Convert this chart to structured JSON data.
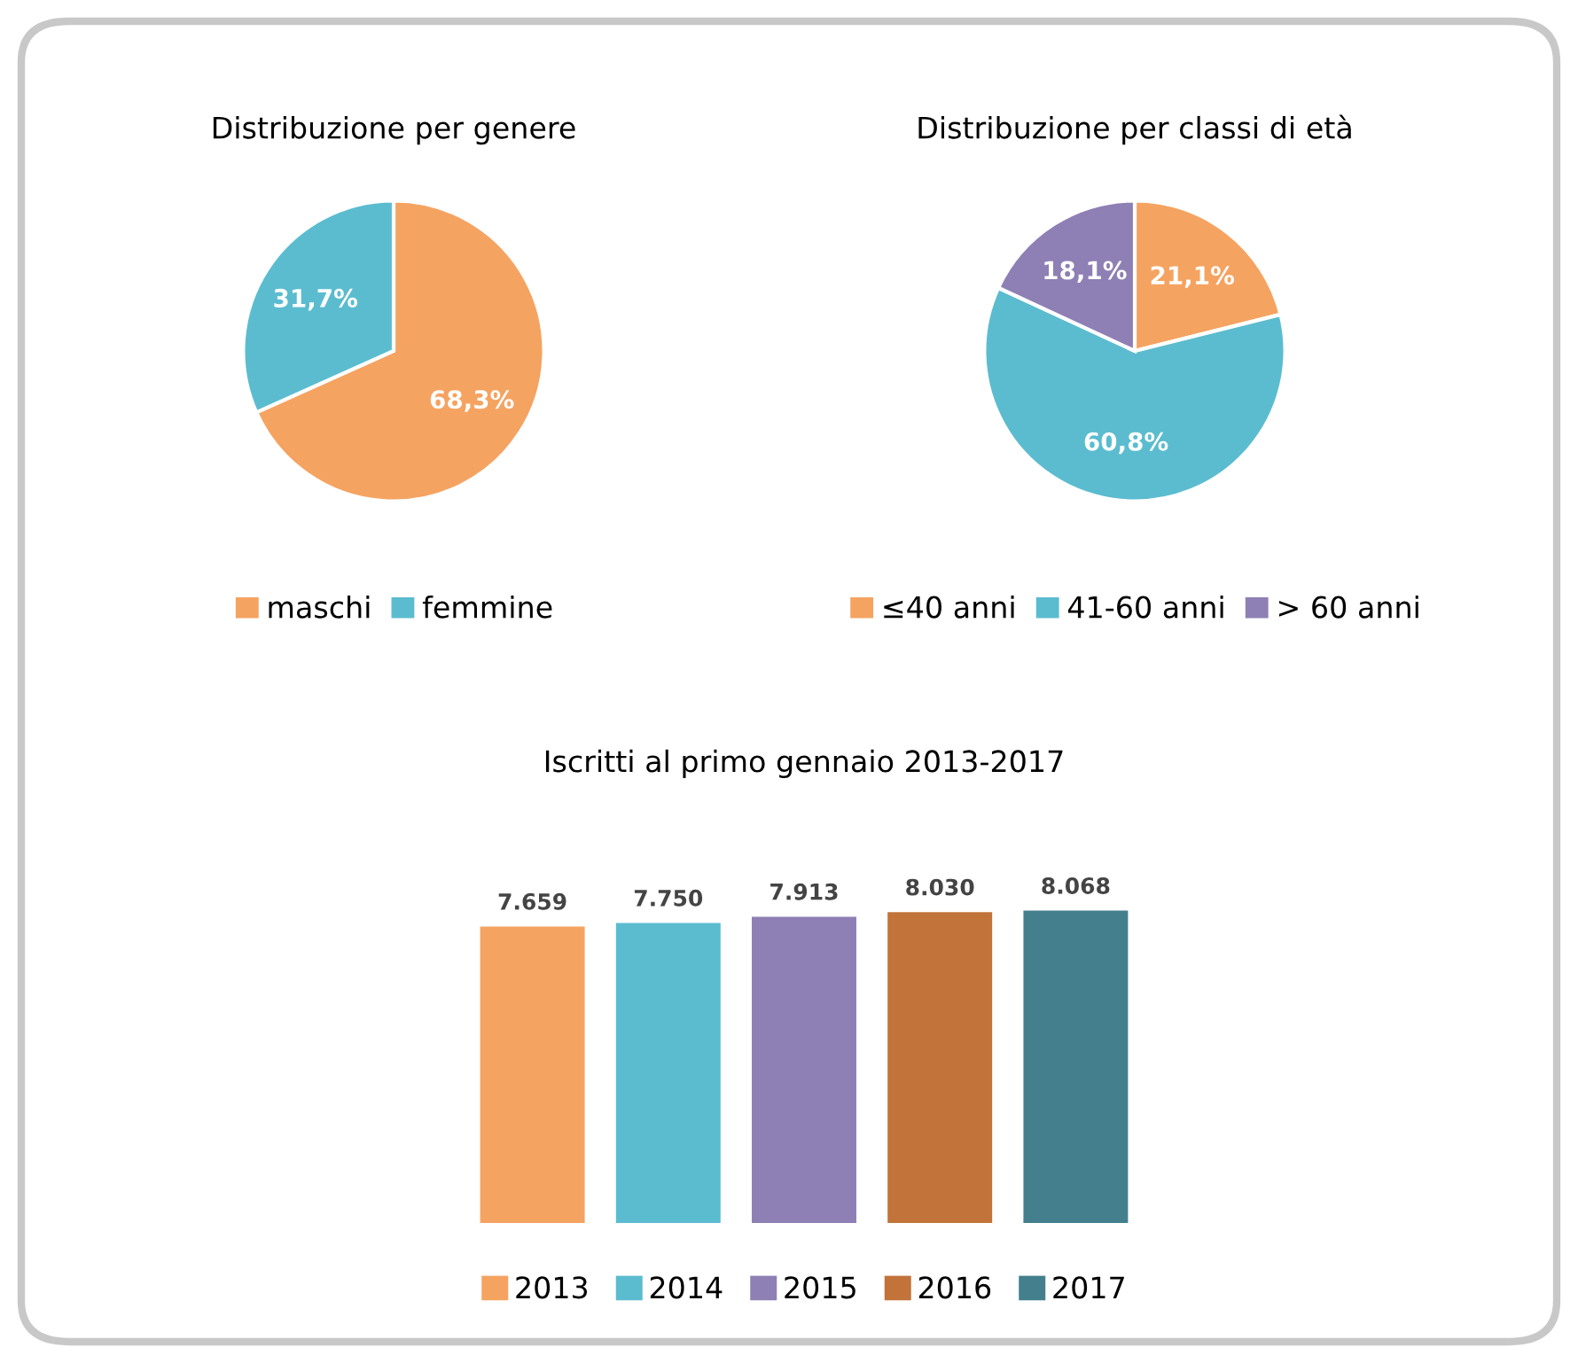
{
  "chart_data": [
    {
      "type": "pie",
      "title": "Distribuzione per genere",
      "categories": [
        "maschi",
        "femmine"
      ],
      "values": [
        68.3,
        31.7
      ],
      "colors": [
        "#f5a361",
        "#5bbccf"
      ],
      "value_labels": [
        "68,3%",
        "31,7%"
      ],
      "legend": "bottom"
    },
    {
      "type": "pie",
      "title": "Distribuzione per classi di età",
      "categories": [
        "≤40 anni",
        "41-60 anni",
        "> 60 anni"
      ],
      "values": [
        21.1,
        60.8,
        18.1
      ],
      "colors": [
        "#f5a361",
        "#5bbccf",
        "#8e7fb4"
      ],
      "value_labels": [
        "21,1%",
        "60,8%",
        "18,1%"
      ],
      "legend": "bottom"
    },
    {
      "type": "bar",
      "title": "Iscritti al primo gennaio 2013-2017",
      "categories": [
        null,
        null,
        null,
        null,
        null
      ],
      "stacked": true,
      "tick_labels": false,
      "legend": "bottom",
      "series": [
        {
          "name": "2013",
          "color": "#f5a361",
          "values": [
            7659,
            null,
            null,
            null,
            null
          ],
          "value_labels": [
            "7.659",
            null,
            null,
            null,
            null
          ]
        },
        {
          "name": "2014",
          "color": "#5bbccf",
          "values": [
            null,
            7750,
            null,
            null,
            null
          ],
          "value_labels": [
            null,
            "7.750",
            null,
            null,
            null
          ]
        },
        {
          "name": "2015",
          "color": "#8e7fb4",
          "values": [
            null,
            null,
            7913,
            null,
            null
          ],
          "value_labels": [
            null,
            null,
            "7.913",
            null,
            null
          ]
        },
        {
          "name": "2016",
          "color": "#c2733a",
          "values": [
            null,
            null,
            null,
            8030,
            null
          ],
          "value_labels": [
            null,
            null,
            null,
            "8.030",
            null
          ]
        },
        {
          "name": "2017",
          "color": "#437f8d",
          "values": [
            null,
            null,
            null,
            null,
            8068
          ],
          "value_labels": [
            null,
            null,
            null,
            null,
            "8.068"
          ]
        }
      ]
    }
  ]
}
